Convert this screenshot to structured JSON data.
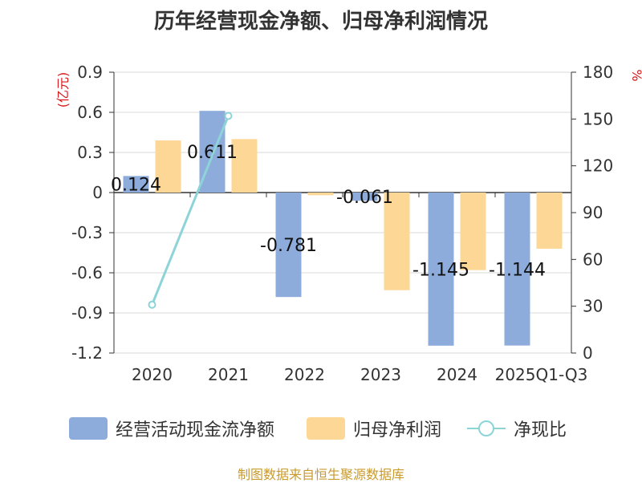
{
  "title": "历年经营现金净额、归母净利润情况",
  "source_text": "制图数据来自恒生聚源数据库",
  "colors": {
    "cash": "#8eacdb",
    "profit": "#fdd796",
    "ratio": "#8dd4d8",
    "unit_text": "#d7191c"
  },
  "chart_data": {
    "type": "bar",
    "title": "历年经营现金净额、归母净利润情况",
    "categories": [
      "2020",
      "2021",
      "2022",
      "2023",
      "2024",
      "2025Q1-Q3"
    ],
    "left_axis": {
      "unit": "(亿元)",
      "ylim": [
        -1.2,
        0.9
      ],
      "ticks": [
        "0.9",
        "0.6",
        "0.3",
        "0",
        "-0.3",
        "-0.6",
        "-0.9",
        "-1.2"
      ]
    },
    "right_axis": {
      "unit": "%",
      "ylim": [
        0,
        180
      ],
      "ticks": [
        "180",
        "150",
        "120",
        "90",
        "60",
        "30",
        "0"
      ]
    },
    "series": [
      {
        "name": "经营活动现金流净额",
        "type": "bar",
        "axis": "left",
        "values": [
          0.124,
          0.611,
          -0.781,
          -0.061,
          -1.145,
          -1.144
        ],
        "labels": [
          "0.124",
          "0.611",
          "-0.781",
          "-0.061",
          "-1.145",
          "-1.144"
        ]
      },
      {
        "name": "归母净利润",
        "type": "bar",
        "axis": "left",
        "values": [
          0.39,
          0.4,
          -0.02,
          -0.73,
          -0.58,
          -0.42
        ]
      },
      {
        "name": "净现比",
        "type": "line",
        "axis": "right",
        "values": [
          31,
          152,
          null,
          null,
          null,
          null
        ]
      }
    ],
    "grid": true,
    "legend_position": "bottom"
  }
}
